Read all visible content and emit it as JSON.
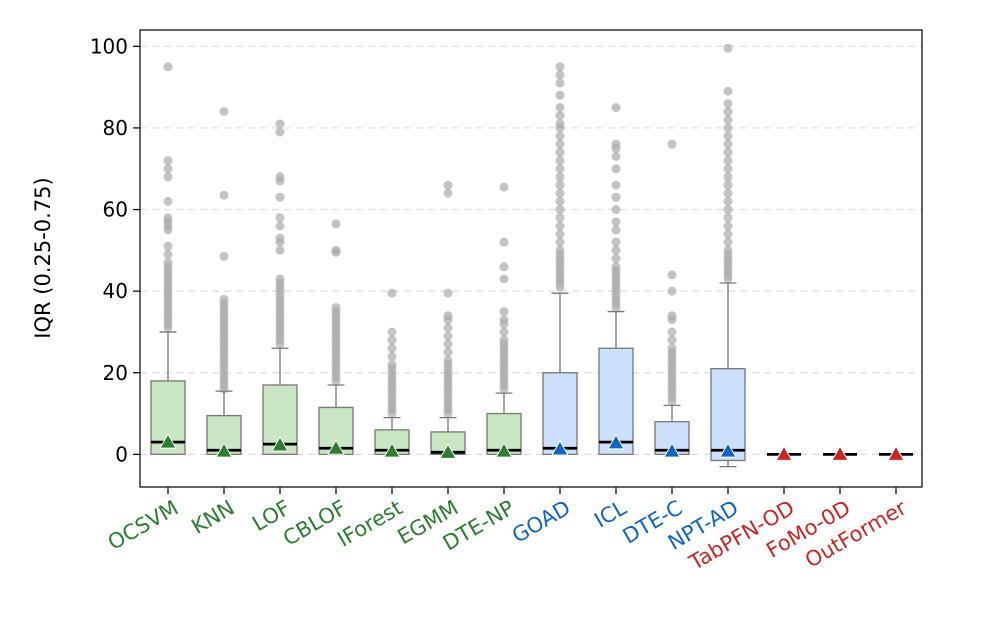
{
  "chart_data": {
    "type": "box",
    "ylabel": "IQR (0.25-0.75)",
    "ylim": [
      -8,
      104
    ],
    "yticks": [
      0,
      20,
      40,
      60,
      80,
      100
    ],
    "grid": "y-dashed",
    "colors": {
      "classical": "#2e7d32",
      "classical_fill": "#c8e6c2",
      "deep": "#1565c0",
      "deep_fill": "#cce0fb",
      "foundation": "#c62828",
      "median": "#000000",
      "whisker": "#777777",
      "outlier": "#a9a9a9"
    },
    "categories": [
      {
        "label": "OCSVM",
        "group": "classical",
        "q1": 0,
        "median": 3,
        "q3": 18,
        "whisker_low": 0,
        "whisker_high": 30,
        "mean": 3,
        "outliers": [
          31,
          32,
          33,
          34,
          35,
          36,
          37,
          38,
          39,
          40,
          41,
          42,
          43,
          44,
          45,
          46,
          47,
          49,
          51,
          55,
          56,
          57,
          58,
          62,
          68,
          70,
          72,
          95
        ]
      },
      {
        "label": "KNN",
        "group": "classical",
        "q1": 0,
        "median": 1,
        "q3": 9.5,
        "whisker_low": 0,
        "whisker_high": 15.5,
        "mean": 0.8,
        "outliers": [
          16,
          17,
          18,
          19,
          20,
          21,
          22,
          23,
          24,
          25,
          26,
          27,
          28,
          29,
          30,
          31,
          32,
          33,
          34,
          35,
          36,
          37,
          38,
          48.5,
          63.5,
          84
        ]
      },
      {
        "label": "LOF",
        "group": "classical",
        "q1": 0,
        "median": 2.5,
        "q3": 17,
        "whisker_low": 0,
        "whisker_high": 26,
        "mean": 2.3,
        "outliers": [
          27,
          28,
          29,
          30,
          31,
          32,
          33,
          34,
          35,
          36,
          37,
          38,
          39,
          40,
          41,
          42,
          43,
          50,
          52,
          53,
          56,
          58,
          63,
          67,
          68,
          79,
          81
        ]
      },
      {
        "label": "CBLOF",
        "group": "classical",
        "q1": 0,
        "median": 1.5,
        "q3": 11.5,
        "whisker_low": 0,
        "whisker_high": 17,
        "mean": 1.5,
        "outliers": [
          18,
          19,
          20,
          21,
          22,
          23,
          24,
          25,
          26,
          27,
          28,
          29,
          30,
          31,
          32,
          33,
          34,
          35,
          36,
          49.5,
          50,
          56.5
        ]
      },
      {
        "label": "IForest",
        "group": "classical",
        "q1": 0,
        "median": 1,
        "q3": 6,
        "whisker_low": 0,
        "whisker_high": 9,
        "mean": 0.8,
        "outliers": [
          10,
          11,
          12,
          13,
          14,
          15,
          16,
          17,
          18,
          19,
          20,
          21,
          22,
          24,
          26,
          28,
          30,
          39.5
        ]
      },
      {
        "label": "EGMM",
        "group": "classical",
        "q1": 0,
        "median": 0.5,
        "q3": 5.5,
        "whisker_low": 0,
        "whisker_high": 9,
        "mean": 0.5,
        "outliers": [
          10,
          11,
          12,
          13,
          14,
          15,
          16,
          17,
          18,
          19,
          20,
          21,
          22,
          23,
          25,
          27,
          29,
          31,
          33,
          34,
          39.5,
          64,
          66
        ]
      },
      {
        "label": "DTE-NP",
        "group": "classical",
        "q1": 0,
        "median": 1,
        "q3": 10,
        "whisker_low": 0,
        "whisker_high": 15,
        "mean": 0.8,
        "outliers": [
          16,
          17,
          18,
          19,
          20,
          21,
          22,
          23,
          24,
          25,
          26,
          27,
          28,
          30,
          32,
          33,
          35,
          43,
          46,
          52,
          65.5
        ]
      },
      {
        "label": "GOAD",
        "group": "deep",
        "q1": 0,
        "median": 1.5,
        "q3": 20,
        "whisker_low": 0,
        "whisker_high": 39.5,
        "mean": 1.3,
        "outliers": [
          41,
          42,
          43,
          44,
          45,
          46,
          47,
          48,
          49,
          50,
          52,
          54,
          56,
          58,
          60,
          62,
          64,
          66,
          68,
          70,
          72,
          74,
          76,
          78,
          80,
          81,
          83,
          85,
          88,
          91,
          93,
          95
        ]
      },
      {
        "label": "ICL",
        "group": "deep",
        "q1": 0,
        "median": 3,
        "q3": 26,
        "whisker_low": 0,
        "whisker_high": 35,
        "mean": 2.8,
        "outliers": [
          36,
          37,
          38,
          39,
          40,
          41,
          42,
          43,
          44,
          45,
          46,
          48,
          50,
          52,
          55,
          57,
          60,
          63,
          66,
          70,
          73,
          75,
          76,
          85
        ]
      },
      {
        "label": "DTE-C",
        "group": "deep",
        "q1": 0,
        "median": 1,
        "q3": 8,
        "whisker_low": 0,
        "whisker_high": 12,
        "mean": 0.8,
        "outliers": [
          13,
          14,
          15,
          16,
          17,
          18,
          19,
          20,
          21,
          22,
          23,
          24,
          25,
          26,
          28,
          30,
          33,
          34,
          40,
          44,
          76
        ]
      },
      {
        "label": "NPT-AD",
        "group": "deep",
        "q1": -1.5,
        "median": 1,
        "q3": 21,
        "whisker_low": -3,
        "whisker_high": 42,
        "mean": 0.8,
        "outliers": [
          43,
          44,
          45,
          46,
          47,
          48,
          49,
          50,
          52,
          54,
          56,
          58,
          60,
          62,
          64,
          66,
          68,
          70,
          72,
          74,
          76,
          78,
          80,
          82,
          84,
          86,
          89,
          99.5
        ]
      },
      {
        "label": "TabPFN-OD",
        "group": "foundation",
        "q1": 0,
        "median": 0,
        "q3": 0,
        "whisker_low": 0,
        "whisker_high": 0,
        "mean": 0,
        "outliers": []
      },
      {
        "label": "FoMo-0D",
        "group": "foundation",
        "q1": 0,
        "median": 0,
        "q3": 0,
        "whisker_low": 0,
        "whisker_high": 0,
        "mean": 0,
        "outliers": []
      },
      {
        "label": "OutFormer",
        "group": "foundation",
        "q1": 0,
        "median": 0,
        "q3": 0,
        "whisker_low": 0,
        "whisker_high": 0,
        "mean": 0,
        "outliers": []
      }
    ]
  }
}
